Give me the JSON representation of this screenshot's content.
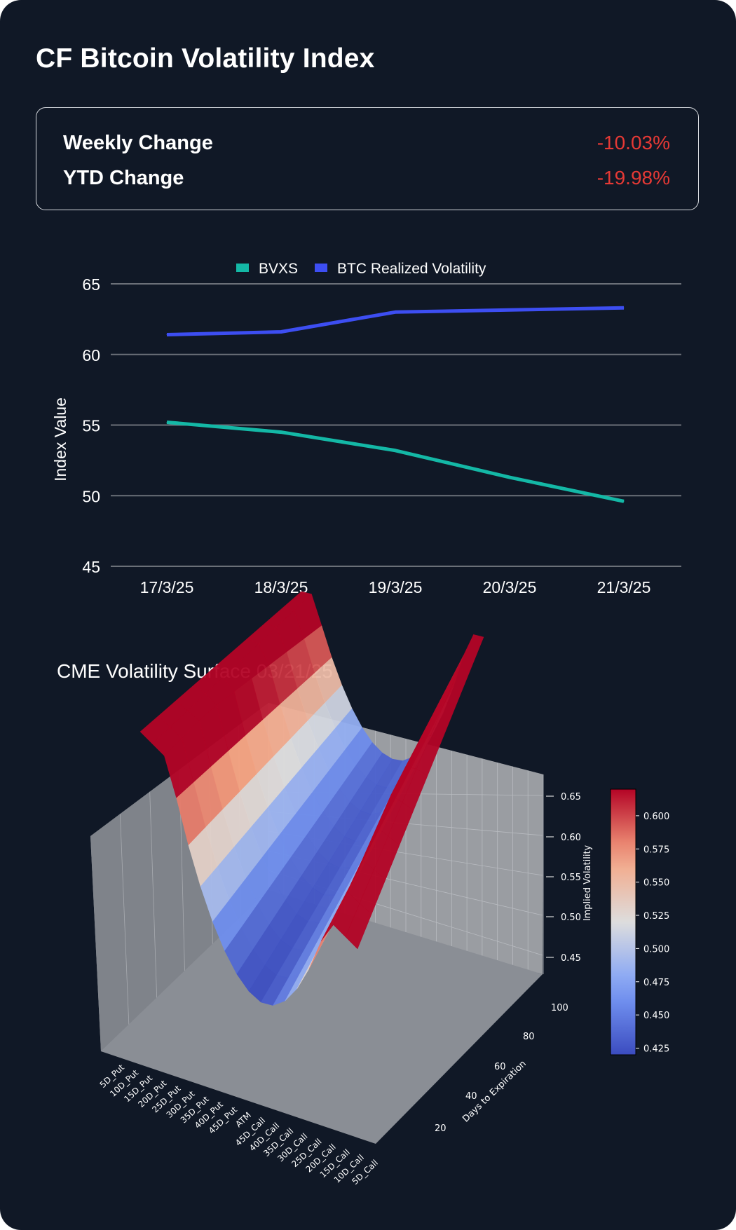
{
  "page": {
    "title": "CF Bitcoin Volatility Index"
  },
  "stats": [
    {
      "label": "Weekly Change",
      "value": "-10.03%",
      "color": "#e53935"
    },
    {
      "label": "YTD Change",
      "value": "-19.98%",
      "color": "#e53935"
    }
  ],
  "colors": {
    "background": "#101826",
    "bvxs": "#14b8a6",
    "btc_rv": "#3d4ef2",
    "gridline": "#6b7078",
    "negative": "#e53935"
  },
  "chart_data": [
    {
      "type": "line",
      "title": "",
      "categories": [
        "17/3/25",
        "18/3/25",
        "19/3/25",
        "20/3/25",
        "21/3/25"
      ],
      "series": [
        {
          "name": "BVXS",
          "color": "#14b8a6",
          "values": [
            55.2,
            54.5,
            53.2,
            51.3,
            49.6
          ]
        },
        {
          "name": "BTC Realized Volatility",
          "color": "#3d4ef2",
          "values": [
            61.4,
            61.6,
            63.0,
            63.15,
            63.3
          ]
        }
      ],
      "xlabel": "",
      "ylabel": "Index Value",
      "ylim": [
        45,
        65
      ],
      "yticks": [
        45,
        50,
        55,
        60,
        65
      ],
      "legend": "top-center",
      "grid": true
    },
    {
      "type": "surface3d",
      "title": "CME Volatility Surface 03/21/25",
      "x_label": "",
      "y_label": "Days to Expiration",
      "z_label": "Implied Volatility",
      "x_categories": [
        "5D_Put",
        "10D_Put",
        "15D_Put",
        "20D_Put",
        "25D_Put",
        "30D_Put",
        "35D_Put",
        "40D_Put",
        "45D_Put",
        "ATM",
        "45D_Call",
        "40D_Call",
        "35D_Call",
        "30D_Call",
        "25D_Call",
        "20D_Call",
        "15D_Call",
        "10D_Call",
        "5D_Call"
      ],
      "y_ticks": [
        20,
        40,
        60,
        80,
        100
      ],
      "z_ticks": [
        0.45,
        0.5,
        0.55,
        0.6,
        0.65
      ],
      "colorbar": {
        "ticks": [
          "0.425",
          "0.450",
          "0.475",
          "0.500",
          "0.525",
          "0.550",
          "0.575",
          "0.600"
        ],
        "range": [
          0.42,
          0.62
        ],
        "colormap": "coolwarm"
      }
    }
  ]
}
